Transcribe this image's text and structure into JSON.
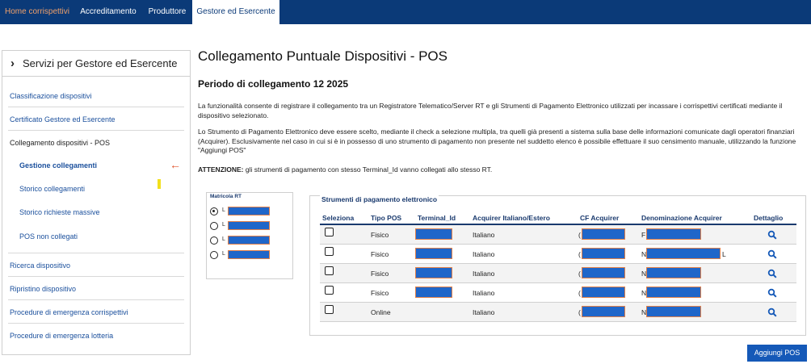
{
  "topnav": {
    "tabs": [
      {
        "label": "Home corrispettivi"
      },
      {
        "label": "Accreditamento"
      },
      {
        "label": "Produttore"
      },
      {
        "label": "Gestore ed Esercente"
      }
    ]
  },
  "sidebar": {
    "header": "Servizi per Gestore ed Esercente",
    "items": [
      {
        "label": "Classificazione dispositivi"
      },
      {
        "label": "Certificato Gestore ed Esercente"
      },
      {
        "label": "Collegamento dispositivi - POS"
      },
      {
        "label": "Gestione collegamenti"
      },
      {
        "label": "Storico collegamenti"
      },
      {
        "label": "Storico richieste massive"
      },
      {
        "label": "POS non collegati"
      },
      {
        "label": "Ricerca dispositivo"
      },
      {
        "label": "Ripristino dispositivo"
      },
      {
        "label": "Procedure di emergenza corrispettivi"
      },
      {
        "label": "Procedure di emergenza lotteria"
      }
    ]
  },
  "main": {
    "title": "Collegamento Puntuale Dispositivi - POS",
    "period": "Periodo di collegamento 12 2025",
    "para1": "La funzionalità consente di registrare il collegamento tra un Registratore Telematico/Server RT e gli Strumenti di Pagamento Elettronico utilizzati per incassare i corrispettivi certificati mediante il dispositivo selezionato.",
    "para2": "Lo Strumento di Pagamento Elettronico deve essere scelto, mediante il check a selezione multipla, tra quelli già presenti a sistema sulla base delle informazioni comunicate dagli operatori finanziari (Acquirer). Esclusivamente nel caso in cui si è in possesso di uno strumento di pagamento non presente nel suddetto elenco è possibile effettuare il suo censimento manuale, utilizzando la funzione \"Aggiungi POS\"",
    "attention_label": "ATTENZIONE:",
    "attention_text": " gli strumenti di pagamento con stesso Terminal_Id vanno collegati allo stesso RT."
  },
  "matricola": {
    "label": "Matricola RT",
    "rows": [
      {
        "prefix": "L",
        "selected": true
      },
      {
        "prefix": "L",
        "selected": false
      },
      {
        "prefix": "L",
        "selected": false
      },
      {
        "prefix": "L",
        "selected": false
      }
    ]
  },
  "strumenti": {
    "label": "Strumenti di pagamento elettronico",
    "columns": [
      "Seleziona",
      "Tipo POS",
      "Terminal_Id",
      "Acquirer Italiano/Estero",
      "CF Acquirer",
      "Denominazione Acquirer",
      "Dettaglio"
    ],
    "rows": [
      {
        "tipo": "Fisico",
        "acquirer": "Italiano",
        "cf_prefix": "(",
        "den_prefix": "F",
        "den_suffix": "",
        "terminal_redacted": true
      },
      {
        "tipo": "Fisico",
        "acquirer": "Italiano",
        "cf_prefix": "(",
        "den_prefix": "N",
        "den_suffix": "L",
        "terminal_redacted": true
      },
      {
        "tipo": "Fisico",
        "acquirer": "Italiano",
        "cf_prefix": "(",
        "den_prefix": "N",
        "den_suffix": "",
        "terminal_redacted": true
      },
      {
        "tipo": "Fisico",
        "acquirer": "Italiano",
        "cf_prefix": "(",
        "den_prefix": "N",
        "den_suffix": "",
        "terminal_redacted": true
      },
      {
        "tipo": "Online",
        "acquirer": "Italiano",
        "cf_prefix": "(",
        "den_prefix": "N",
        "den_suffix": "",
        "terminal_redacted": false
      }
    ]
  },
  "actions": {
    "aggiungi_pos": "Aggiungi POS"
  },
  "colors": {
    "nav": "#0b3a78",
    "accent": "#1559b8",
    "redaction": "#1f66c9",
    "home_tab": "#f0a06a"
  }
}
